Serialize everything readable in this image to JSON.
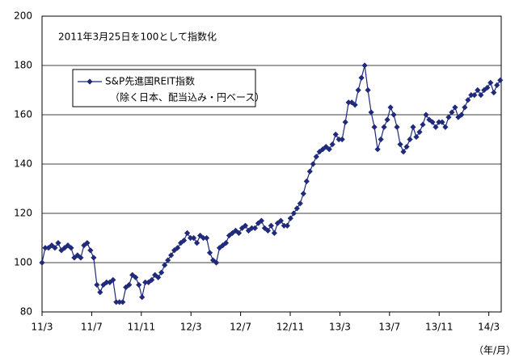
{
  "chart_data": {
    "type": "line",
    "annotation": "2011年3月25日を100として指数化",
    "x_label": "（年/月）",
    "legend_note": "（除く日本、配当込み・円ベース）",
    "grid": true,
    "legend": "upper left",
    "xlim": [
      0,
      37
    ],
    "xticks": [
      {
        "value": 0,
        "label": "11/3"
      },
      {
        "value": 4,
        "label": "11/7"
      },
      {
        "value": 8,
        "label": "11/11"
      },
      {
        "value": 12,
        "label": "12/3"
      },
      {
        "value": 16,
        "label": "12/7"
      },
      {
        "value": 20,
        "label": "12/11"
      },
      {
        "value": 24,
        "label": "13/3"
      },
      {
        "value": 28,
        "label": "13/7"
      },
      {
        "value": 32,
        "label": "13/11"
      },
      {
        "value": 36,
        "label": "14/3"
      }
    ],
    "ylim": [
      80,
      200
    ],
    "yticks": [
      80,
      100,
      120,
      140,
      160,
      180,
      200
    ],
    "x": [
      0,
      0.26,
      0.52,
      0.78,
      1.04,
      1.3,
      1.56,
      1.82,
      2.08,
      2.34,
      2.6,
      2.86,
      3.12,
      3.38,
      3.64,
      3.9,
      4.16,
      4.42,
      4.68,
      4.94,
      5.2,
      5.46,
      5.72,
      5.98,
      6.24,
      6.5,
      6.76,
      7.02,
      7.28,
      7.54,
      7.8,
      8.06,
      8.32,
      8.58,
      8.84,
      9.1,
      9.36,
      9.62,
      9.88,
      10.14,
      10.4,
      10.66,
      10.92,
      11.18,
      11.44,
      11.7,
      11.96,
      12.22,
      12.48,
      12.74,
      13,
      13.26,
      13.52,
      13.78,
      14.04,
      14.3,
      14.56,
      14.82,
      15.08,
      15.34,
      15.6,
      15.86,
      16.12,
      16.38,
      16.64,
      16.9,
      17.16,
      17.42,
      17.68,
      17.94,
      18.2,
      18.46,
      18.72,
      18.98,
      19.24,
      19.5,
      19.76,
      20.02,
      20.28,
      20.54,
      20.8,
      21.06,
      21.32,
      21.58,
      21.84,
      22.1,
      22.36,
      22.62,
      22.88,
      23.14,
      23.4,
      23.66,
      23.92,
      24.18,
      24.44,
      24.7,
      24.96,
      25.22,
      25.48,
      25.74,
      26,
      26.26,
      26.52,
      26.78,
      27.04,
      27.3,
      27.56,
      27.82,
      28.08,
      28.34,
      28.6,
      28.86,
      29.12,
      29.38,
      29.64,
      29.9,
      30.16,
      30.42,
      30.68,
      30.94,
      31.2,
      31.46,
      31.72,
      31.98,
      32.24,
      32.5,
      32.76,
      33.02,
      33.28,
      33.54,
      33.8,
      34.06,
      34.32,
      34.58,
      34.84,
      35.1,
      35.36,
      35.62,
      35.88,
      36.14,
      36.4,
      36.66,
      36.92
    ],
    "series": [
      {
        "name": "S&P先進国REIT指数",
        "color": "#1f2a7a",
        "values": [
          100,
          106,
          106,
          107,
          106,
          108,
          105,
          106,
          107,
          106,
          102,
          103,
          102,
          107,
          108,
          105,
          102,
          91,
          88,
          91,
          92,
          92,
          93,
          84,
          84,
          84,
          90,
          91,
          95,
          94,
          91,
          86,
          92,
          92,
          93,
          95,
          94,
          96,
          99,
          101,
          103,
          105,
          106,
          108,
          109,
          112,
          110,
          110,
          108,
          111,
          110,
          110,
          104,
          101,
          100,
          106,
          107,
          108,
          111,
          112,
          113,
          112,
          114,
          115,
          113,
          114,
          114,
          116,
          117,
          114,
          113,
          115,
          112,
          116,
          117,
          115,
          115,
          118,
          120,
          122,
          124,
          128,
          133,
          137,
          140,
          143,
          145,
          146,
          147,
          146,
          148,
          152,
          150,
          150,
          157,
          165,
          165,
          164,
          170,
          175,
          180,
          170,
          161,
          155,
          146,
          150,
          155,
          158,
          163,
          160,
          155,
          148,
          145,
          147,
          150,
          155,
          151,
          153,
          156,
          160,
          158,
          157,
          155,
          157,
          157,
          155,
          159,
          161,
          163,
          159,
          160,
          163,
          166,
          168,
          168,
          170,
          168,
          170,
          171,
          173,
          169,
          172,
          174
        ]
      }
    ]
  }
}
